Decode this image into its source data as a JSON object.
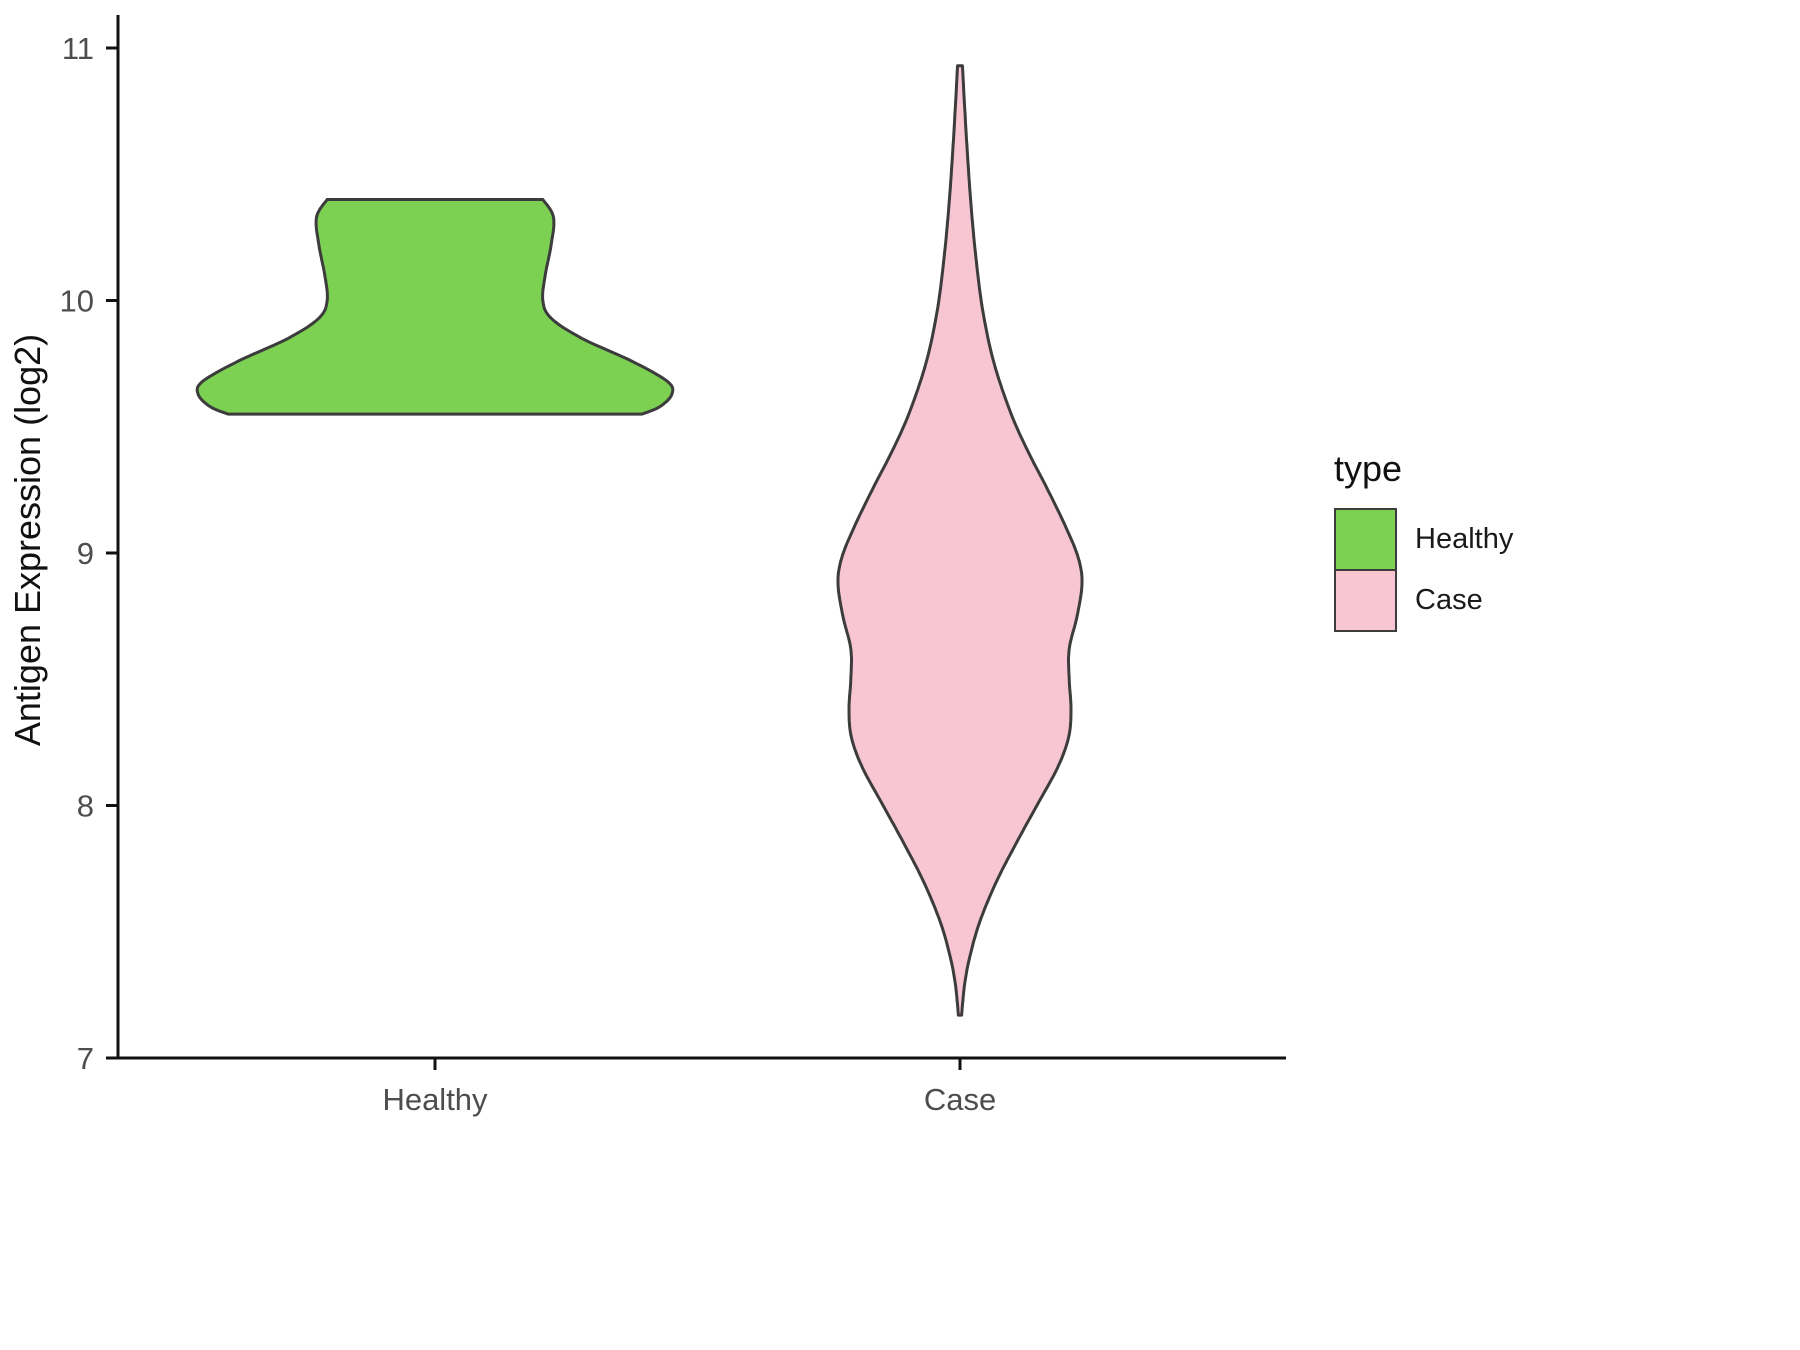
{
  "chart_data": {
    "type": "violin",
    "title": "",
    "xlabel": "",
    "ylabel": "Antigen Expression (log2)",
    "ylim": [
      7,
      11
    ],
    "yticks": [
      7,
      8,
      9,
      10,
      11
    ],
    "categories": [
      "Healthy",
      "Case"
    ],
    "grid": "off",
    "legend_position": "right",
    "legend": {
      "title": "type",
      "entries": [
        {
          "label": "Healthy",
          "fill": "#7CD153",
          "stroke": "#3C3C3C"
        },
        {
          "label": "Case",
          "fill": "#F7C6D2",
          "stroke": "#3C3C3C"
        }
      ]
    },
    "series": [
      {
        "name": "Healthy",
        "fill": "#7CD153",
        "stroke": "#3C3C3C",
        "value_range": [
          9.55,
          10.4
        ],
        "profile": [
          [
            10.4,
            0.455
          ],
          [
            10.33,
            0.5
          ],
          [
            10.22,
            0.49
          ],
          [
            10.1,
            0.465
          ],
          [
            10.0,
            0.455
          ],
          [
            9.93,
            0.49
          ],
          [
            9.85,
            0.62
          ],
          [
            9.76,
            0.83
          ],
          [
            9.68,
            0.98
          ],
          [
            9.63,
            1.0
          ],
          [
            9.58,
            0.95
          ],
          [
            9.55,
            0.873
          ]
        ]
      },
      {
        "name": "Case",
        "fill": "#F7C6D2",
        "stroke": "#3C3C3C",
        "value_range": [
          7.17,
          10.93
        ],
        "profile": [
          [
            10.93,
            0.02
          ],
          [
            10.75,
            0.04
          ],
          [
            10.55,
            0.065
          ],
          [
            10.35,
            0.095
          ],
          [
            10.15,
            0.135
          ],
          [
            9.95,
            0.19
          ],
          [
            9.75,
            0.28
          ],
          [
            9.55,
            0.42
          ],
          [
            9.4,
            0.56
          ],
          [
            9.25,
            0.72
          ],
          [
            9.1,
            0.87
          ],
          [
            8.98,
            0.97
          ],
          [
            8.88,
            1.0
          ],
          [
            8.75,
            0.96
          ],
          [
            8.62,
            0.895
          ],
          [
            8.5,
            0.895
          ],
          [
            8.38,
            0.91
          ],
          [
            8.27,
            0.89
          ],
          [
            8.15,
            0.8
          ],
          [
            8.0,
            0.63
          ],
          [
            7.85,
            0.46
          ],
          [
            7.7,
            0.3
          ],
          [
            7.55,
            0.17
          ],
          [
            7.42,
            0.09
          ],
          [
            7.3,
            0.04
          ],
          [
            7.17,
            0.013
          ]
        ]
      }
    ]
  }
}
